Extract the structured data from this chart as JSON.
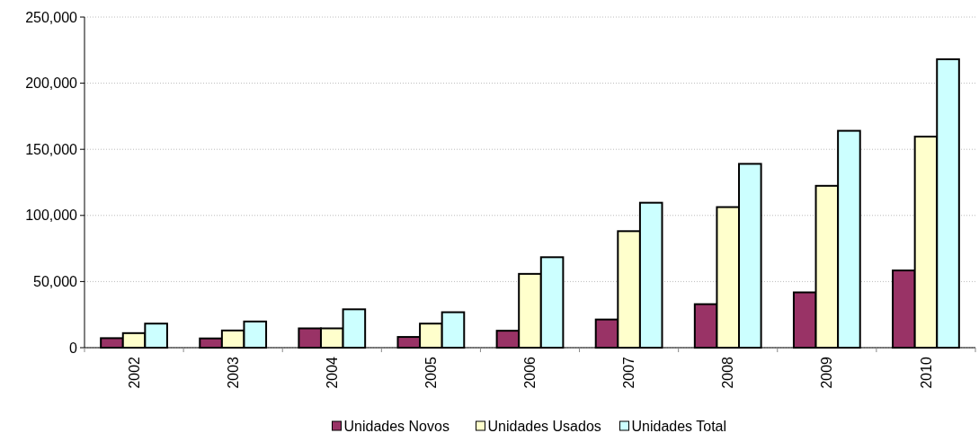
{
  "chart_data": {
    "type": "bar",
    "categories": [
      "2002",
      "2003",
      "2004",
      "2005",
      "2006",
      "2007",
      "2008",
      "2009",
      "2010"
    ],
    "series": [
      {
        "name": "Unidades Novos",
        "color": "#993366",
        "values": [
          7200,
          7000,
          14600,
          8100,
          12800,
          21300,
          32900,
          41800,
          58400
        ]
      },
      {
        "name": "Unidades Usados",
        "color": "#ffffcc",
        "values": [
          11000,
          13000,
          14600,
          18200,
          55800,
          88100,
          106300,
          122400,
          159600
        ]
      },
      {
        "name": "Unidades Total",
        "color": "#ccffff",
        "values": [
          18200,
          19800,
          29000,
          26800,
          68400,
          109600,
          139000,
          164000,
          218100
        ]
      }
    ],
    "ylim": [
      0,
      250000
    ],
    "yticks": [
      {
        "value": 0,
        "label": "0"
      },
      {
        "value": 50000,
        "label": "50,000"
      },
      {
        "value": 100000,
        "label": "100,000"
      },
      {
        "value": 150000,
        "label": "150,000"
      },
      {
        "value": 200000,
        "label": "200,000"
      },
      {
        "value": 250000,
        "label": "250,000"
      }
    ],
    "grid": "y",
    "legend": "bottom"
  }
}
